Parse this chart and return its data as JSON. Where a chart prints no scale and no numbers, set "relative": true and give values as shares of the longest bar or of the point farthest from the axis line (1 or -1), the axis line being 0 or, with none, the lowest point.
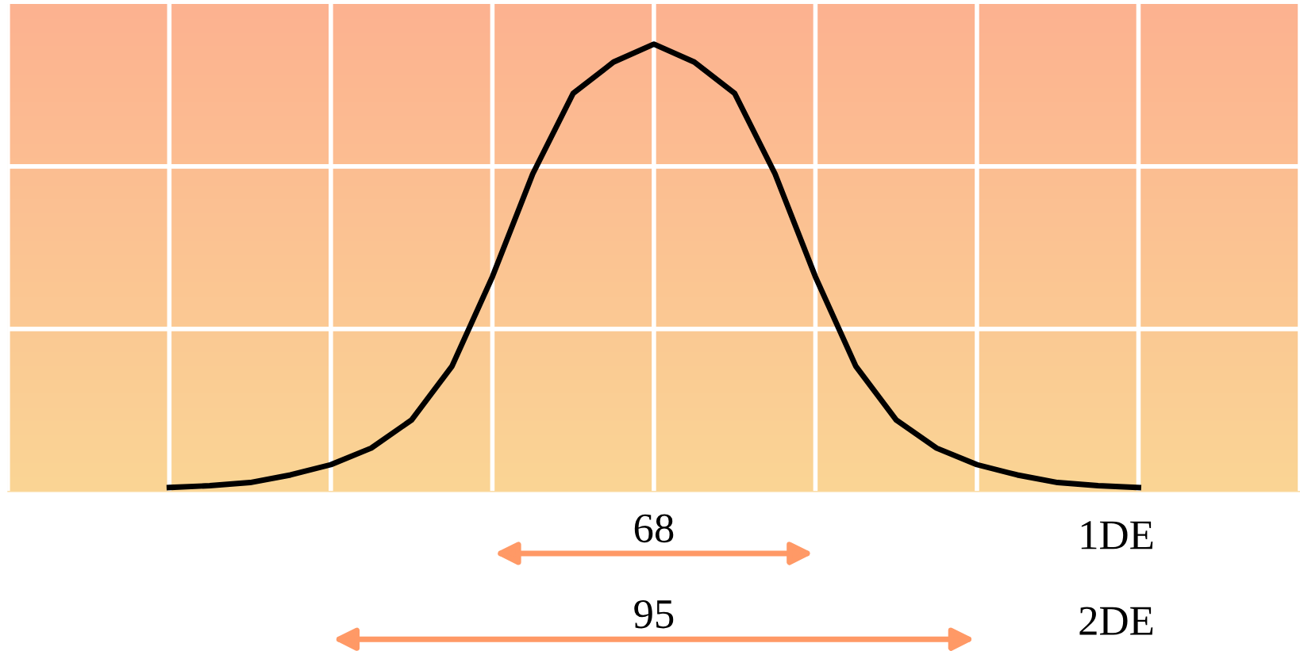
{
  "chart_data": {
    "type": "line",
    "relative": true,
    "grid": true,
    "color": "#000000",
    "categories": [
      null,
      null,
      null,
      null,
      null,
      null,
      null,
      null,
      null,
      null,
      null,
      null,
      null,
      null,
      null,
      null,
      null,
      null,
      null,
      null,
      null,
      null,
      null,
      null,
      null,
      null,
      null,
      null,
      null,
      null,
      null,
      null,
      null
    ],
    "values": [
      null,
      null,
      null,
      null,
      0.009,
      0.013,
      0.02,
      0.037,
      0.06,
      0.097,
      0.16,
      0.28,
      0.48,
      0.71,
      0.89,
      0.96,
      1,
      0.96,
      0.89,
      0.71,
      0.48,
      0.28,
      0.16,
      0.097,
      0.06,
      0.037,
      0.02,
      0.013,
      0.009,
      null,
      null,
      null,
      null
    ],
    "annotations": [
      "68",
      "1DE",
      "95",
      "2DE"
    ]
  }
}
